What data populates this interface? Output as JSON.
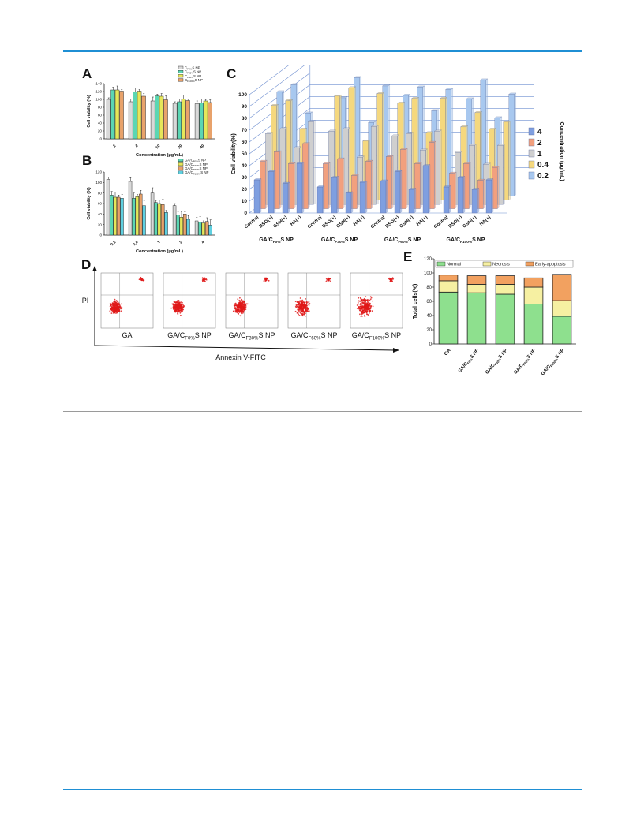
{
  "colors": {
    "accent_rule": "#1f8fd4",
    "ab_series": [
      "#d9d9d9",
      "#5bd6b3",
      "#e6e65a",
      "#e8a26b",
      "#5fd0e0"
    ],
    "c_series": [
      "#7f9fe0",
      "#f2a07e",
      "#cfcfcf",
      "#f5d87e",
      "#a8c8ef"
    ],
    "e_stack": [
      "#8ee08e",
      "#f6f0a2",
      "#f2a160"
    ],
    "dot": "#e01818"
  },
  "panels": {
    "A": "A",
    "B": "B",
    "C": "C",
    "D": "D",
    "E": "E"
  },
  "chart_data": [
    {
      "id": "A",
      "type": "bar",
      "categories": [
        "2",
        "4",
        "10",
        "20",
        "40"
      ],
      "xlabel": "Concentration (μg/mL)",
      "ylabel": "Cell viability (%)",
      "ylim": [
        0,
        140
      ],
      "yticks": [
        "0",
        "20",
        "40",
        "60",
        "80",
        "100",
        "120",
        "140"
      ],
      "legend_position": "top-right",
      "series": [
        {
          "name": "C",
          "sub": "F0%",
          "suffix": "S NP",
          "values": [
            100,
            94,
            96,
            90,
            89
          ]
        },
        {
          "name": "C",
          "sub": "F30%",
          "suffix": "S NP",
          "values": [
            124,
            119,
            109,
            94,
            91
          ]
        },
        {
          "name": "C",
          "sub": "F60%",
          "suffix": "S NP",
          "values": [
            124,
            121,
            108,
            101,
            96
          ]
        },
        {
          "name": "C",
          "sub": "F100%",
          "suffix": "S NP",
          "values": [
            121,
            108,
            99,
            97,
            92
          ]
        }
      ]
    },
    {
      "id": "B",
      "type": "bar",
      "categories": [
        "0.2",
        "0.4",
        "1",
        "2",
        "4"
      ],
      "xlabel": "Concentration (μg/mL)",
      "ylabel": "Cell viability (%)",
      "ylim": [
        0,
        120
      ],
      "yticks": [
        "0",
        "20",
        "40",
        "60",
        "80",
        "100",
        "120"
      ],
      "legend_position": "top-right",
      "series": [
        {
          "name": "GA",
          "sub": "",
          "suffix": "",
          "values": [
            106,
            102,
            80,
            56,
            27
          ]
        },
        {
          "name": "GA/C",
          "sub": "F0%",
          "suffix": "S NP",
          "values": [
            76,
            70,
            62,
            38,
            25
          ]
        },
        {
          "name": "GA/C",
          "sub": "F30%",
          "suffix": "S NP",
          "values": [
            72,
            73,
            60,
            34,
            23
          ]
        },
        {
          "name": "GA/C",
          "sub": "F60%",
          "suffix": "S NP",
          "values": [
            72,
            78,
            58,
            40,
            26
          ]
        },
        {
          "name": "GA/C",
          "sub": "F100%",
          "suffix": "S NP",
          "values": [
            70,
            56,
            43,
            30,
            19
          ]
        }
      ]
    },
    {
      "id": "C",
      "type": "bar",
      "subtype": "3d-bar",
      "ylabel": "Cell viability(%)",
      "ylim": [
        0,
        100
      ],
      "yticks": [
        "0",
        "10",
        "20",
        "30",
        "40",
        "50",
        "60",
        "70",
        "80",
        "90",
        "100"
      ],
      "legend_title": "Concentration (μg/mL)",
      "legend": [
        "4",
        "2",
        "1",
        "0.4",
        "0.2"
      ],
      "conditions": [
        "Control",
        "BSO(+)",
        "GSH(+)",
        "HA(+)"
      ],
      "groups": [
        {
          "name": "GA/C",
          "sub": "F0%",
          "suffix": "S NP",
          "values": [
            [
              28,
              40,
              60,
              80,
              88
            ],
            [
              35,
              48,
              64,
              84,
              94
            ],
            [
              25,
              38,
              48,
              60,
              70
            ],
            [
              42,
              55,
              70,
              0,
              0
            ]
          ]
        },
        {
          "name": "GA/C",
          "sub": "F30%",
          "suffix": "S NP",
          "values": [
            [
              22,
              38,
              62,
              88,
              83
            ],
            [
              30,
              42,
              64,
              95,
              100
            ],
            [
              17,
              28,
              40,
              50,
              62
            ],
            [
              26,
              40,
              66,
              90,
              93
            ]
          ]
        },
        {
          "name": "GA/C",
          "sub": "F60%",
          "suffix": "S NP",
          "values": [
            [
              27,
              44,
              58,
              82,
              85
            ],
            [
              35,
              50,
              60,
              86,
              92
            ],
            [
              20,
              38,
              46,
              57,
              72
            ],
            [
              40,
              56,
              62,
              86,
              90
            ]
          ]
        },
        {
          "name": "GA/C",
          "sub": "F100%",
          "suffix": "S NP",
          "values": [
            [
              22,
              30,
              44,
              62,
              82
            ],
            [
              30,
              38,
              50,
              74,
              98
            ],
            [
              20,
              24,
              34,
              60,
              66
            ],
            [
              28,
              35,
              50,
              66,
              86
            ]
          ]
        }
      ]
    },
    {
      "id": "D",
      "type": "scatter",
      "xlabel": "Annexin V-FITC",
      "ylabel": "PI",
      "plots": [
        {
          "name": "GA",
          "sub": "",
          "suffix": ""
        },
        {
          "name": "GA/C",
          "sub": "F0%",
          "suffix": "S NP"
        },
        {
          "name": "GA/C",
          "sub": "F30%",
          "suffix": "S NP"
        },
        {
          "name": "GA/C",
          "sub": "F60%",
          "suffix": "S NP"
        },
        {
          "name": "GA/C",
          "sub": "F100%",
          "suffix": "S NP"
        }
      ]
    },
    {
      "id": "E",
      "type": "bar",
      "subtype": "stacked",
      "ylabel": "Total cells(%)",
      "ylim": [
        0,
        120
      ],
      "yticks": [
        "0",
        "20",
        "40",
        "60",
        "80",
        "100",
        "120"
      ],
      "legend_position": "top",
      "categories": [
        {
          "name": "GA",
          "sub": "",
          "suffix": ""
        },
        {
          "name": "GA/C",
          "sub": "F0%",
          "suffix": "S NP"
        },
        {
          "name": "GA/C",
          "sub": "F30%",
          "suffix": "S NP"
        },
        {
          "name": "GA/C",
          "sub": "F60%",
          "suffix": "S NP"
        },
        {
          "name": "GA/C",
          "sub": "F100%",
          "suffix": "S NP"
        }
      ],
      "series": [
        {
          "name": "Normal",
          "values": [
            73,
            72,
            70,
            56,
            39
          ]
        },
        {
          "name": "Necrosis",
          "values": [
            16,
            12,
            14,
            24,
            22
          ]
        },
        {
          "name": "Early-apoptosis",
          "values": [
            8,
            12,
            12,
            13,
            37
          ]
        }
      ]
    }
  ]
}
